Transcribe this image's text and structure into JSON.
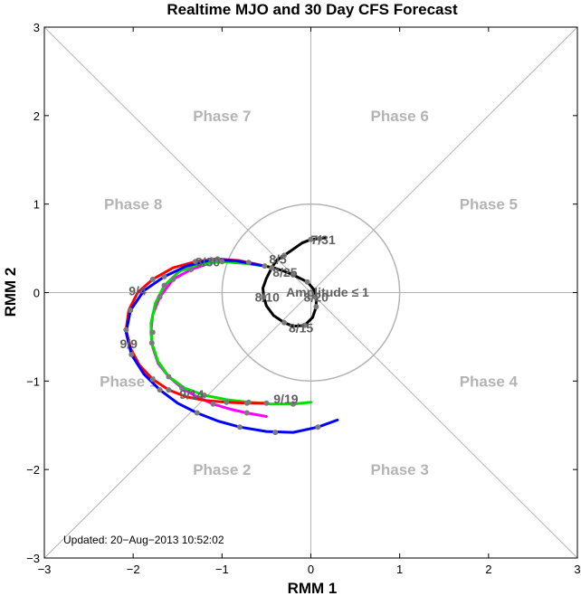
{
  "chart_data": {
    "type": "line",
    "title": "Realtime MJO and 30 Day CFS Forecast",
    "xlabel": "RMM 1",
    "ylabel": "RMM 2",
    "xlim": [
      -3,
      3
    ],
    "ylim": [
      -3,
      3
    ],
    "xticks": [
      "−3",
      "−2",
      "−1",
      "0",
      "1",
      "2",
      "3"
    ],
    "yticks": [
      "−3",
      "−2",
      "−1",
      "0",
      "1",
      "2",
      "3"
    ],
    "grid": false,
    "phase_labels": [
      {
        "text": "Phase 1",
        "x": -2.05,
        "y": -1.0
      },
      {
        "text": "Phase 2",
        "x": -1.0,
        "y": -2.0
      },
      {
        "text": "Phase 3",
        "x": 1.0,
        "y": -2.0
      },
      {
        "text": "Phase 4",
        "x": 2.0,
        "y": -1.0
      },
      {
        "text": "Phase 5",
        "x": 2.0,
        "y": 1.0
      },
      {
        "text": "Phase 6",
        "x": 1.0,
        "y": 2.0
      },
      {
        "text": "Phase 7",
        "x": -1.0,
        "y": 2.0
      },
      {
        "text": "Phase 8",
        "x": -2.0,
        "y": 1.0
      }
    ],
    "amplitude_label": "Amplitude ≤ 1",
    "updated_text": "Updated: 20−Aug−2013 10:52:02",
    "series": [
      {
        "color": "#000000",
        "points": [
          [
            0.17,
            0.62
          ],
          [
            0.1,
            0.61
          ],
          [
            0.0,
            0.6
          ],
          [
            -0.1,
            0.56
          ],
          [
            -0.2,
            0.49
          ],
          [
            -0.3,
            0.42
          ],
          [
            -0.39,
            0.36
          ],
          [
            -0.44,
            0.28
          ],
          [
            -0.5,
            0.16
          ],
          [
            -0.54,
            0.05
          ],
          [
            -0.53,
            -0.05
          ],
          [
            -0.5,
            -0.15
          ],
          [
            -0.42,
            -0.26
          ],
          [
            -0.3,
            -0.34
          ],
          [
            -0.2,
            -0.38
          ],
          [
            -0.07,
            -0.37
          ],
          [
            0.02,
            -0.28
          ],
          [
            0.06,
            -0.16
          ],
          [
            0.06,
            -0.05
          ],
          [
            0.03,
            0.04
          ],
          [
            -0.04,
            0.12
          ],
          [
            -0.12,
            0.16
          ],
          [
            -0.2,
            0.2
          ],
          [
            -0.3,
            0.24
          ],
          [
            -0.42,
            0.28
          ],
          [
            -0.52,
            0.3
          ]
        ],
        "markers": [
          [
            0.1,
            0.61
          ],
          [
            0.0,
            0.6
          ],
          [
            -0.3,
            0.42
          ],
          [
            -0.44,
            0.28
          ],
          [
            -0.53,
            -0.05
          ],
          [
            -0.3,
            -0.34
          ],
          [
            -0.07,
            -0.37
          ],
          [
            0.06,
            -0.16
          ],
          [
            -0.04,
            0.12
          ],
          [
            -0.2,
            0.2
          ],
          [
            -0.52,
            0.3
          ]
        ]
      },
      {
        "color": "#ff00ff",
        "points": [
          [
            -0.52,
            0.3
          ],
          [
            -0.7,
            0.34
          ],
          [
            -0.9,
            0.35
          ],
          [
            -1.12,
            0.34
          ],
          [
            -1.35,
            0.26
          ],
          [
            -1.55,
            0.15
          ],
          [
            -1.7,
            -0.05
          ],
          [
            -1.78,
            -0.25
          ],
          [
            -1.8,
            -0.45
          ],
          [
            -1.78,
            -0.62
          ],
          [
            -1.72,
            -0.8
          ],
          [
            -1.6,
            -0.95
          ],
          [
            -1.45,
            -1.08
          ],
          [
            -1.28,
            -1.18
          ],
          [
            -1.1,
            -1.26
          ],
          [
            -0.9,
            -1.32
          ],
          [
            -0.72,
            -1.36
          ],
          [
            -0.5,
            -1.4
          ]
        ],
        "markers": [
          [
            -0.7,
            0.34
          ],
          [
            -1.35,
            0.26
          ],
          [
            -1.55,
            0.15
          ],
          [
            -1.7,
            -0.05
          ],
          [
            -1.78,
            -0.45
          ],
          [
            -1.6,
            -0.95
          ],
          [
            -1.45,
            -1.08
          ],
          [
            -1.1,
            -1.26
          ],
          [
            -0.72,
            -1.36
          ]
        ]
      },
      {
        "color": "#00e000",
        "points": [
          [
            -0.52,
            0.3
          ],
          [
            -0.75,
            0.33
          ],
          [
            -1.0,
            0.35
          ],
          [
            -1.25,
            0.32
          ],
          [
            -1.48,
            0.24
          ],
          [
            -1.65,
            0.08
          ],
          [
            -1.75,
            -0.12
          ],
          [
            -1.8,
            -0.35
          ],
          [
            -1.79,
            -0.57
          ],
          [
            -1.72,
            -0.78
          ],
          [
            -1.6,
            -0.95
          ],
          [
            -1.42,
            -1.08
          ],
          [
            -1.2,
            -1.16
          ],
          [
            -0.95,
            -1.21
          ],
          [
            -0.7,
            -1.24
          ],
          [
            -0.45,
            -1.26
          ],
          [
            -0.2,
            -1.26
          ],
          [
            0.0,
            -1.24
          ]
        ],
        "markers": [
          [
            -1.0,
            0.35
          ],
          [
            -1.65,
            0.08
          ],
          [
            -1.79,
            -0.57
          ],
          [
            -1.2,
            -1.16
          ],
          [
            -0.7,
            -1.24
          ],
          [
            -0.2,
            -1.26
          ],
          [
            0.05,
            -0.05
          ]
        ]
      },
      {
        "color": "#ff0000",
        "points": [
          [
            -0.52,
            0.3
          ],
          [
            -0.8,
            0.36
          ],
          [
            -1.05,
            0.38
          ],
          [
            -1.3,
            0.35
          ],
          [
            -1.55,
            0.28
          ],
          [
            -1.78,
            0.15
          ],
          [
            -1.95,
            0.0
          ],
          [
            -2.05,
            -0.2
          ],
          [
            -2.08,
            -0.42
          ],
          [
            -2.03,
            -0.63
          ],
          [
            -1.93,
            -0.82
          ],
          [
            -1.78,
            -0.98
          ],
          [
            -1.6,
            -1.1
          ],
          [
            -1.4,
            -1.18
          ],
          [
            -1.18,
            -1.22
          ],
          [
            -0.95,
            -1.24
          ],
          [
            -0.72,
            -1.25
          ],
          [
            -0.5,
            -1.25
          ]
        ],
        "markers": [
          [
            -1.05,
            0.38
          ],
          [
            -1.3,
            0.35
          ],
          [
            -1.78,
            0.15
          ],
          [
            -2.08,
            -0.42
          ],
          [
            -1.78,
            -0.98
          ],
          [
            -1.6,
            -1.1
          ],
          [
            -0.95,
            -1.24
          ],
          [
            -0.72,
            -1.25
          ],
          [
            -0.5,
            -1.25
          ]
        ]
      },
      {
        "color": "#0000ff",
        "points": [
          [
            -0.52,
            0.3
          ],
          [
            -0.85,
            0.36
          ],
          [
            -1.12,
            0.37
          ],
          [
            -1.4,
            0.3
          ],
          [
            -1.65,
            0.18
          ],
          [
            -1.88,
            0.02
          ],
          [
            -2.03,
            -0.2
          ],
          [
            -2.08,
            -0.45
          ],
          [
            -2.02,
            -0.7
          ],
          [
            -1.88,
            -0.92
          ],
          [
            -1.7,
            -1.1
          ],
          [
            -1.5,
            -1.25
          ],
          [
            -1.28,
            -1.36
          ],
          [
            -1.05,
            -1.45
          ],
          [
            -0.8,
            -1.52
          ],
          [
            -0.5,
            -1.57
          ],
          [
            -0.2,
            -1.58
          ],
          [
            0.08,
            -1.52
          ],
          [
            0.3,
            -1.44
          ]
        ],
        "markers": [
          [
            -1.12,
            0.37
          ],
          [
            -1.65,
            0.18
          ],
          [
            -2.03,
            -0.2
          ],
          [
            -2.02,
            -0.7
          ],
          [
            -1.7,
            -1.1
          ],
          [
            -1.28,
            -1.36
          ],
          [
            -0.8,
            -1.52
          ],
          [
            -0.4,
            -1.58
          ],
          [
            0.08,
            -1.52
          ]
        ]
      }
    ],
    "date_labels": [
      {
        "text": "7/31",
        "x": 0.0,
        "y": 0.6
      },
      {
        "text": "8/5",
        "x": -0.47,
        "y": 0.38
      },
      {
        "text": "8/25",
        "x": -0.43,
        "y": 0.23
      },
      {
        "text": "8/10",
        "x": -0.63,
        "y": -0.05
      },
      {
        "text": "8/20",
        "x": -0.08,
        "y": -0.05
      },
      {
        "text": "8/15",
        "x": -0.25,
        "y": -0.4
      },
      {
        "text": "8/30",
        "x": -1.3,
        "y": 0.35
      },
      {
        "text": "9/4",
        "x": -2.05,
        "y": 0.02
      },
      {
        "text": "9/9",
        "x": -2.15,
        "y": -0.58
      },
      {
        "text": "9/14",
        "x": -1.48,
        "y": -1.15
      },
      {
        "text": "9/19",
        "x": -0.42,
        "y": -1.2
      }
    ]
  }
}
